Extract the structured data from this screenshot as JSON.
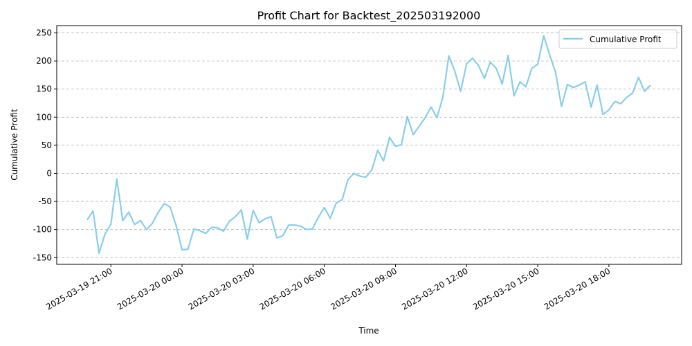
{
  "chart_data": {
    "type": "line",
    "title": "Profit Chart for Backtest_202503192000",
    "xlabel": "Time",
    "ylabel": "Cumulative Profit",
    "grid": "y-dashed",
    "legend_position": "top-right",
    "start_time": "2025-03-19 20:00",
    "interval_minutes": 15,
    "x_ticks": [
      {
        "offset_min": 60,
        "label": "2025-03-19 21:00"
      },
      {
        "offset_min": 240,
        "label": "2025-03-20 00:00"
      },
      {
        "offset_min": 420,
        "label": "2025-03-20 03:00"
      },
      {
        "offset_min": 600,
        "label": "2025-03-20 06:00"
      },
      {
        "offset_min": 780,
        "label": "2025-03-20 09:00"
      },
      {
        "offset_min": 960,
        "label": "2025-03-20 12:00"
      },
      {
        "offset_min": 1140,
        "label": "2025-03-20 15:00"
      },
      {
        "offset_min": 1320,
        "label": "2025-03-20 18:00"
      }
    ],
    "y_ticks": [
      -150,
      -100,
      -50,
      0,
      50,
      100,
      150,
      200,
      250
    ],
    "xlim": [
      -77,
      1504
    ],
    "ylim": [
      -162,
      263
    ],
    "series": [
      {
        "name": "Cumulative Profit",
        "color": "#87CEEB",
        "values": [
          -83,
          -67,
          -142,
          -108,
          -91,
          -10,
          -84,
          -69,
          -91,
          -84,
          -100,
          -89,
          -69,
          -54,
          -60,
          -93,
          -136,
          -135,
          -99,
          -102,
          -107,
          -96,
          -97,
          -103,
          -85,
          -77,
          -65,
          -117,
          -66,
          -88,
          -81,
          -77,
          -115,
          -111,
          -92,
          -92,
          -94,
          -100,
          -99,
          -78,
          -61,
          -80,
          -53,
          -47,
          -11,
          0,
          -5,
          -7,
          6,
          41,
          22,
          64,
          48,
          51,
          101,
          69,
          84,
          99,
          118,
          99,
          136,
          209,
          182,
          146,
          195,
          205,
          192,
          169,
          198,
          187,
          159,
          210,
          138,
          163,
          154,
          187,
          194,
          245,
          211,
          180,
          119,
          158,
          153,
          157,
          163,
          118,
          157,
          105,
          113,
          128,
          124,
          135,
          143,
          171,
          146,
          157
        ]
      }
    ]
  }
}
